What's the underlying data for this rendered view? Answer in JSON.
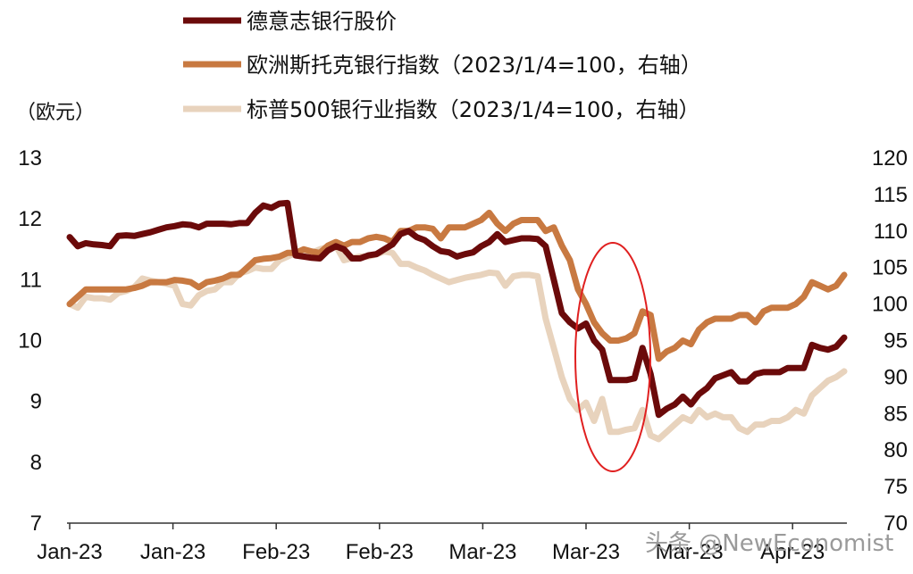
{
  "chart_data": {
    "type": "line",
    "left_unit": "（欧元）",
    "x_tick_labels": [
      "Jan-23",
      "Jan-23",
      "Feb-23",
      "Feb-23",
      "Mar-23",
      "Mar-23",
      "Mar-23",
      "Apr-23"
    ],
    "y_left": {
      "min": 7,
      "max": 13,
      "ticks": [
        7,
        8,
        9,
        10,
        11,
        12,
        13
      ]
    },
    "y_right": {
      "min": 70,
      "max": 120,
      "ticks": [
        70,
        75,
        80,
        85,
        90,
        95,
        100,
        105,
        110,
        115,
        120
      ]
    },
    "grid": false,
    "legend_position": "top",
    "series": [
      {
        "name": "德意志银行股价",
        "axis": "left",
        "color": "#6b0a0a",
        "values": [
          11.7,
          11.55,
          11.6,
          11.58,
          11.57,
          11.55,
          11.72,
          11.73,
          11.72,
          11.75,
          11.78,
          11.82,
          11.86,
          11.88,
          11.91,
          11.9,
          11.86,
          11.92,
          11.92,
          11.92,
          11.91,
          11.93,
          11.93,
          12.1,
          12.22,
          12.18,
          12.25,
          12.26,
          11.4,
          11.38,
          11.36,
          11.35,
          11.48,
          11.55,
          11.5,
          11.35,
          11.35,
          11.4,
          11.42,
          11.5,
          11.58,
          11.75,
          11.8,
          11.7,
          11.65,
          11.55,
          11.47,
          11.45,
          11.38,
          11.42,
          11.45,
          11.55,
          11.62,
          11.75,
          11.62,
          11.65,
          11.68,
          11.68,
          11.67,
          11.55,
          11.0,
          10.45,
          10.3,
          10.2,
          10.28,
          10.0,
          9.85,
          9.35,
          9.35,
          9.35,
          9.38,
          9.88,
          9.45,
          8.78,
          8.88,
          8.95,
          9.08,
          8.95,
          9.12,
          9.22,
          9.38,
          9.43,
          9.48,
          9.33,
          9.33,
          9.45,
          9.48,
          9.48,
          9.48,
          9.55,
          9.55,
          9.55,
          9.93,
          9.88,
          9.85,
          9.9,
          10.05
        ]
      },
      {
        "name": "欧洲斯托克银行指数（2023/1/4=100，右轴）",
        "axis": "right",
        "color": "#c87941",
        "values": [
          100.0,
          101.0,
          102.0,
          102.0,
          102.0,
          102.0,
          102.0,
          102.0,
          102.2,
          102.5,
          103.0,
          103.0,
          103.0,
          103.3,
          103.2,
          103.0,
          102.3,
          103.0,
          103.2,
          103.5,
          104.0,
          104.0,
          105.0,
          106.0,
          106.2,
          106.3,
          106.5,
          107.0,
          107.0,
          107.5,
          107.2,
          107.0,
          108.0,
          108.5,
          108.0,
          108.5,
          108.5,
          109.0,
          109.2,
          109.0,
          108.5,
          110.0,
          110.0,
          110.5,
          110.5,
          110.3,
          109.0,
          110.5,
          110.5,
          110.5,
          111.0,
          111.5,
          112.5,
          111.0,
          110.0,
          111.0,
          111.5,
          111.5,
          111.5,
          110.0,
          110.5,
          108.0,
          106.0,
          102.0,
          100.0,
          97.5,
          96.0,
          95.0,
          95.0,
          95.3,
          96.0,
          99.0,
          98.5,
          92.5,
          93.5,
          94.0,
          95.0,
          94.5,
          96.5,
          97.5,
          98.0,
          98.0,
          98.0,
          98.5,
          98.5,
          97.5,
          99.0,
          99.5,
          99.5,
          99.5,
          100.0,
          101.0,
          103.0,
          102.5,
          102.0,
          102.5,
          104.0
        ]
      },
      {
        "name": "标普500银行业指数（2023/1/4=100，右轴）",
        "axis": "right",
        "color": "#e8d3bd",
        "values": [
          100.0,
          99.5,
          101.0,
          100.8,
          100.8,
          100.6,
          101.5,
          101.8,
          102.3,
          103.5,
          103.2,
          103.0,
          102.8,
          102.5,
          100.0,
          99.8,
          101.2,
          101.8,
          102.0,
          103.0,
          103.0,
          104.2,
          104.5,
          105.0,
          104.8,
          104.8,
          106.0,
          106.5,
          107.0,
          106.8,
          107.0,
          107.5,
          107.8,
          108.0,
          106.0,
          106.3,
          106.5,
          106.5,
          106.8,
          107.2,
          107.0,
          105.5,
          105.5,
          105.0,
          104.6,
          104.0,
          103.5,
          103.0,
          103.3,
          103.6,
          103.8,
          104.0,
          104.3,
          104.2,
          102.5,
          103.8,
          104.0,
          104.0,
          103.8,
          98.0,
          94.0,
          90.0,
          87.0,
          85.5,
          86.5,
          84.0,
          87.0,
          82.5,
          82.5,
          82.8,
          83.0,
          85.5,
          82.0,
          81.5,
          82.5,
          83.5,
          84.5,
          84.0,
          85.5,
          84.5,
          85.0,
          84.5,
          84.5,
          83.0,
          82.5,
          83.5,
          83.5,
          84.0,
          84.0,
          84.5,
          85.5,
          85.0,
          87.5,
          88.5,
          89.5,
          90.0,
          90.8
        ]
      }
    ]
  },
  "watermark": "头条 @NewEconomist"
}
